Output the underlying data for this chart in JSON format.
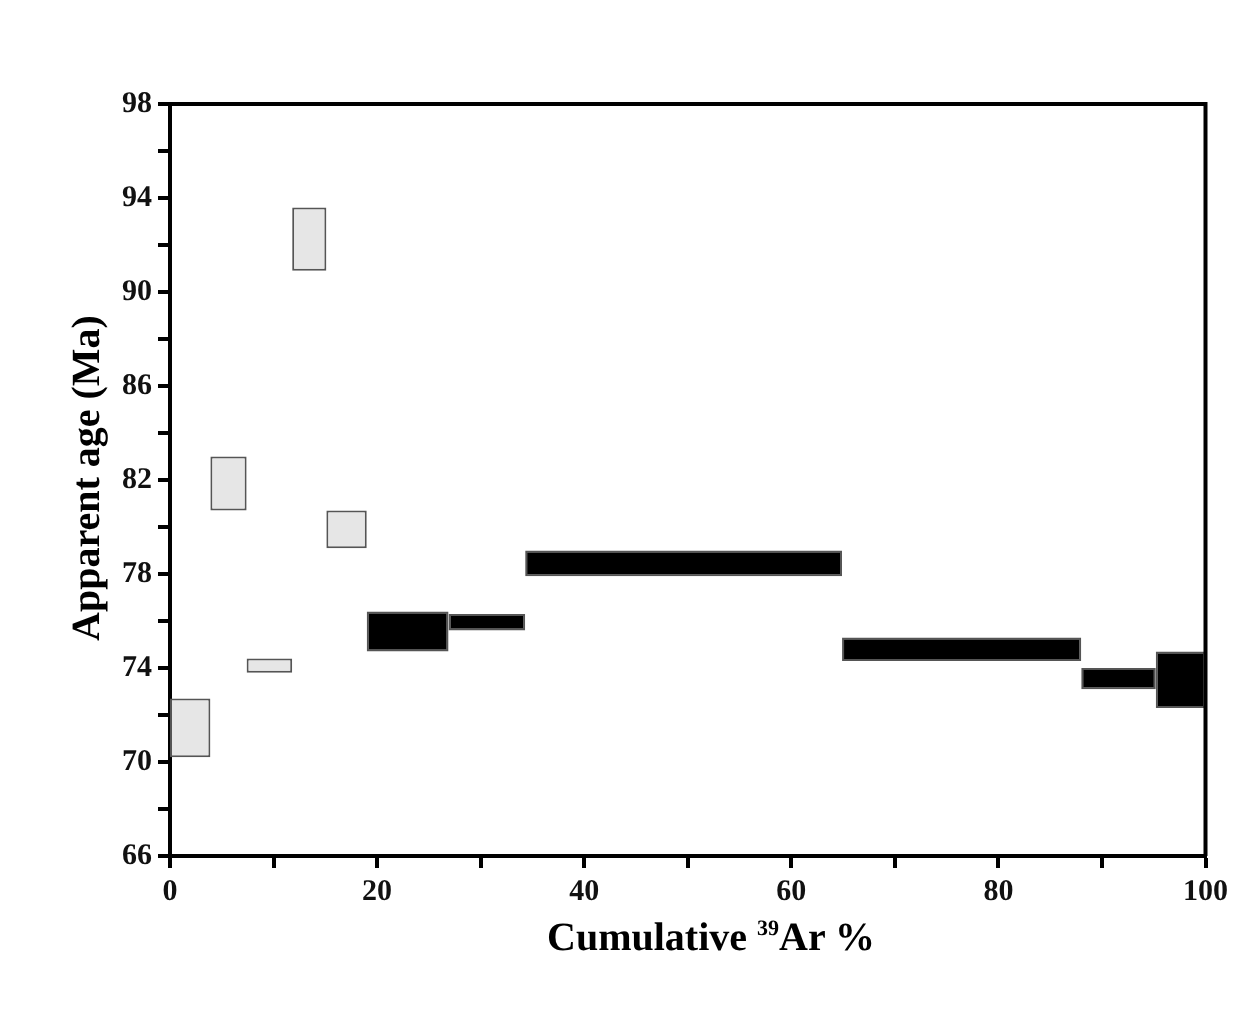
{
  "chart_data": {
    "type": "histogram",
    "xlabel": "Cumulative $^{39}$Ar %",
    "ylabel": "Apparent age (Ma)",
    "bins": [
      0,
      3.9,
      7.4,
      11.8,
      15.1,
      19.0,
      26.9,
      34.3,
      64.9,
      88.0,
      95.2,
      100
    ],
    "base": [
      70.2,
      80.7,
      73.8,
      90.9,
      79.1,
      74.7,
      75.6,
      77.9,
      74.3,
      73.1,
      72.3
    ],
    "values": [
      2.5,
      2.3,
      0.6,
      2.7,
      1.6,
      1.7,
      0.7,
      1.1,
      1.0,
      0.9,
      2.4
    ],
    "colors": [
      "#e6e6e6",
      "#e6e6e6",
      "#e6e6e6",
      "#e6e6e6",
      "#e6e6e6",
      "#000000",
      "#000000",
      "#000000",
      "#000000",
      "#000000",
      "#000000"
    ],
    "xlim": [
      0,
      100
    ],
    "xticks": [
      0,
      {
        "value": 10,
        "label": null
      },
      20,
      {
        "value": 30,
        "label": null
      },
      40,
      {
        "value": 50,
        "label": null
      },
      60,
      {
        "value": 70,
        "label": null
      },
      80,
      {
        "value": 90,
        "label": null
      },
      100
    ],
    "ylim": [
      66,
      98
    ],
    "yticks": [
      66,
      {
        "value": 68,
        "label": null
      },
      70,
      {
        "value": 72,
        "label": null
      },
      74,
      {
        "value": 76,
        "label": null
      },
      78,
      {
        "value": 80,
        "label": null
      },
      82,
      {
        "value": 84,
        "label": null
      },
      86,
      {
        "value": 88,
        "label": null
      },
      90,
      {
        "value": 92,
        "label": null
      },
      94,
      {
        "value": 96,
        "label": null
      },
      98
    ],
    "grid": false,
    "legend": false
  }
}
